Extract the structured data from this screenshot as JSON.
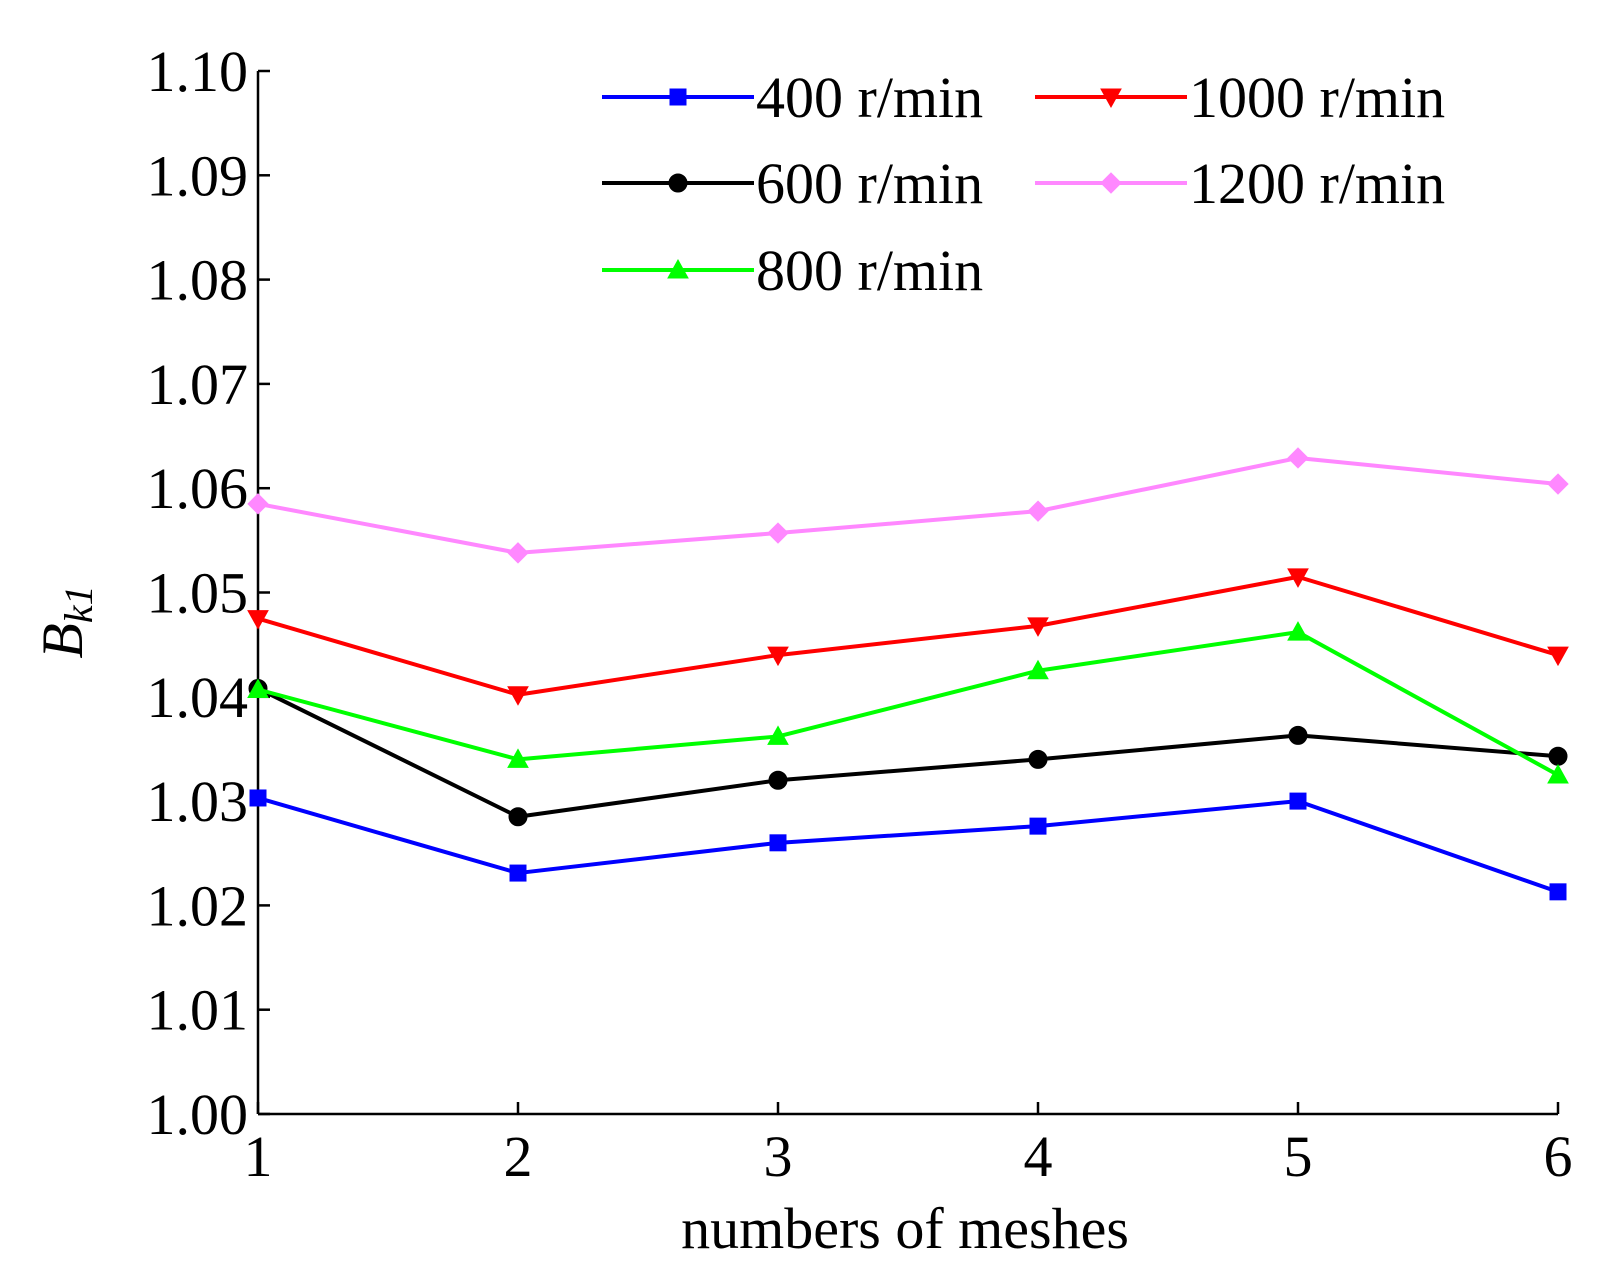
{
  "chart_data": {
    "type": "line",
    "xlabel": "numbers of meshes",
    "ylabel_main": "B",
    "ylabel_sub": "k1",
    "x": [
      1,
      2,
      3,
      4,
      5,
      6
    ],
    "xlim": [
      1,
      6
    ],
    "ylim": [
      1.0,
      1.1
    ],
    "yticks": [
      "1.00",
      "1.01",
      "1.02",
      "1.03",
      "1.04",
      "1.05",
      "1.06",
      "1.07",
      "1.08",
      "1.09",
      "1.10"
    ],
    "xticks": [
      "1",
      "2",
      "3",
      "4",
      "5",
      "6"
    ],
    "grid": false,
    "legend_position": "top-right",
    "series": [
      {
        "name": "400 r/min",
        "color": "#0000ff",
        "marker": "square",
        "values": [
          1.0303,
          1.0231,
          1.026,
          1.0276,
          1.03,
          1.0213
        ]
      },
      {
        "name": "600 r/min",
        "color": "#000000",
        "marker": "circle",
        "values": [
          1.0408,
          1.0285,
          1.032,
          1.034,
          1.0363,
          1.0343
        ]
      },
      {
        "name": "800 r/min",
        "color": "#00ff00",
        "marker": "triangle-up",
        "values": [
          1.0407,
          1.034,
          1.0362,
          1.0425,
          1.0462,
          1.0325
        ]
      },
      {
        "name": "1000 r/min",
        "color": "#ff0000",
        "marker": "triangle-down",
        "values": [
          1.0475,
          1.0402,
          1.044,
          1.0468,
          1.0515,
          1.044
        ]
      },
      {
        "name": "1200 r/min",
        "color": "#ff88ff",
        "marker": "diamond",
        "values": [
          1.0585,
          1.0538,
          1.0557,
          1.0578,
          1.0629,
          1.0604
        ]
      }
    ]
  }
}
